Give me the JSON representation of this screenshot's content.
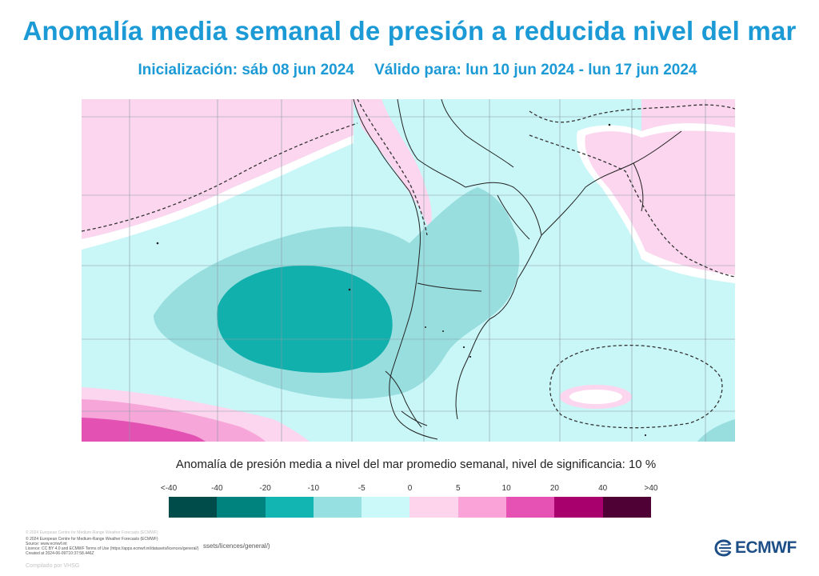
{
  "header": {
    "title": "Anomalía media semanal de presión a reducida nivel del mar",
    "init": "Inicialización: sáb 08 jun 2024",
    "valid": "Válido para: lun 10 jun 2024 - lun 17 jun 2024"
  },
  "legend": {
    "title": "Anomalía de presión media a nivel del mar promedio semanal, nivel de significancia: 10 %",
    "labels": [
      "<-40",
      "-40",
      "-20",
      "-10",
      "-5",
      "0",
      "5",
      "10",
      "20",
      "40",
      ">40"
    ],
    "colors": [
      "#004c4a",
      "#00837f",
      "#12b5b1",
      "#96e0e1",
      "#cbf8f9",
      "#fdd4ec",
      "#f9a3d8",
      "#e652b4",
      "#a8006d",
      "#4f0034"
    ]
  },
  "map": {
    "colors": {
      "land": "#d7f7f8",
      "strong_neg": "#12b0ac",
      "med_neg": "#98dedf",
      "light_neg": "#c9f6f7",
      "light_pos": "#fcd6ee",
      "med_pos": "#f7a6d9",
      "strong_pos": "#e352b3",
      "coast": "#222222",
      "grid": "#8a9aa6"
    }
  },
  "footer": {
    "credits_ghost": "© 2024 European Centre for Medium-Range Weather Forecasts (ECMWF)",
    "credits": [
      "© 2024 European Centre for Medium-Range Weather Forecasts (ECMWF)",
      "Source: www.ecmwf.int",
      "Licence: CC BY 4.0 and ECMWF Terms of Use (https://apps.ecmwf.int/datasets/licences/general/)",
      "Created at 2024-06-09T10:37:58.446Z"
    ],
    "credits_fragment": "ssets/licences/general/)",
    "compiled": "Compilado por VHSG",
    "logo_text": "ECMWF"
  }
}
